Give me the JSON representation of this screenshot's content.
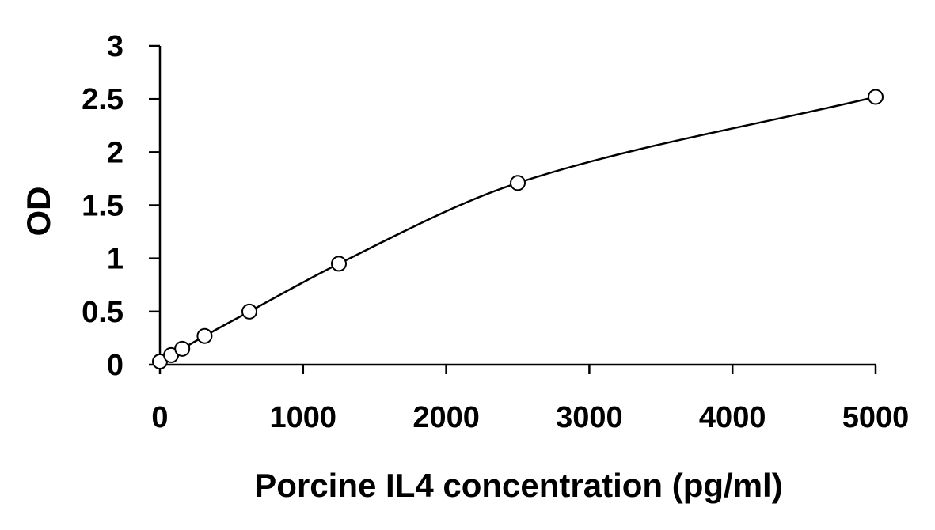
{
  "chart_data": {
    "type": "scatter",
    "title": "",
    "xlabel": "Porcine IL4 concentration (pg/ml)",
    "ylabel": "OD",
    "xlim": [
      0,
      5000
    ],
    "ylim": [
      0,
      3
    ],
    "xticks": [
      0,
      1000,
      2000,
      3000,
      4000,
      5000
    ],
    "xtick_labels": [
      "0",
      "1000",
      "2000",
      "3000",
      "4000",
      "5000"
    ],
    "yticks": [
      0,
      0.5,
      1,
      1.5,
      2,
      2.5,
      3
    ],
    "ytick_labels": [
      "0",
      "0.5",
      "1",
      "1.5",
      "2",
      "2.5",
      "3"
    ],
    "grid": false,
    "legend": "none",
    "series": [
      {
        "points": [
          {
            "x": 0,
            "y": 0.03
          },
          {
            "x": 78,
            "y": 0.09
          },
          {
            "x": 156,
            "y": 0.15
          },
          {
            "x": 312,
            "y": 0.27
          },
          {
            "x": 625,
            "y": 0.5
          },
          {
            "x": 1250,
            "y": 0.95
          },
          {
            "x": 2500,
            "y": 1.71
          },
          {
            "x": 5000,
            "y": 2.52
          }
        ],
        "marker": "open-circle",
        "fit": "smooth-curve",
        "color": "#000000"
      }
    ]
  }
}
